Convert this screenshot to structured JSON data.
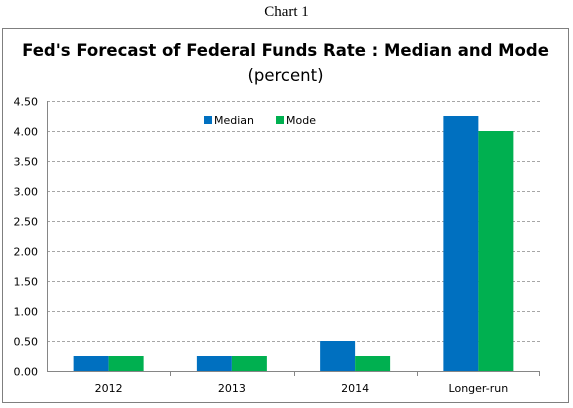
{
  "caption": "Chart 1",
  "colors": {
    "median": "#0070c0",
    "mode": "#00b050",
    "grid": "#a6a6a6",
    "frame": "#7f7f7f"
  },
  "chart_data": {
    "type": "bar",
    "title": "Fed's Forecast of Federal Funds Rate : Median and Mode",
    "subtitle": "(percent)",
    "xlabel": "",
    "ylabel": "",
    "categories": [
      "2012",
      "2013",
      "2014",
      "Longer-run"
    ],
    "series": [
      {
        "name": "Median",
        "values": [
          0.25,
          0.25,
          0.5,
          4.25
        ]
      },
      {
        "name": "Mode",
        "values": [
          0.25,
          0.25,
          0.25,
          4.0
        ]
      }
    ],
    "ylim": [
      0,
      4.5
    ],
    "yticks": [
      "0.00",
      "0.50",
      "1.00",
      "1.50",
      "2.00",
      "2.50",
      "3.00",
      "3.50",
      "4.00",
      "4.50"
    ],
    "grid": "horizontal dashed",
    "legend": "top-center"
  }
}
